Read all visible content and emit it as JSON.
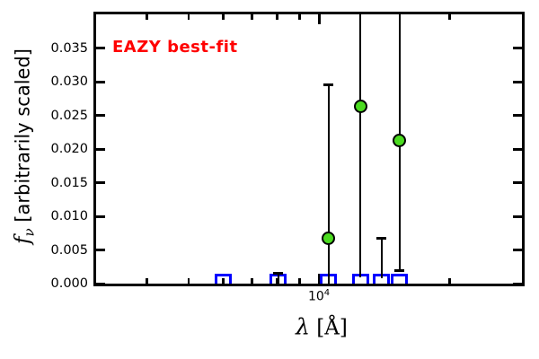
{
  "chart_data": {
    "type": "scatter",
    "annotation": "EAZY best-fit",
    "annotation_color": "#ff0000",
    "xlabel": {
      "symbol": "λ",
      "unit": "[Å]"
    },
    "ylabel": {
      "symbol": "f",
      "subscript": "ν",
      "rest": " [arbitrarily scaled]"
    },
    "x_scale": "log",
    "xlim": [
      3060,
      29400
    ],
    "ylim": [
      0,
      0.04
    ],
    "grid": false,
    "legend": "none",
    "ytick_values": [
      0.0,
      0.005,
      0.01,
      0.015,
      0.02,
      0.025,
      0.03,
      0.035
    ],
    "ytick_labels": [
      "0.000",
      "0.005",
      "0.010",
      "0.015",
      "0.020",
      "0.025",
      "0.030",
      "0.035"
    ],
    "xtick_major": {
      "value": 10000,
      "label_mantissa": "10",
      "label_exponent": "4"
    },
    "xtick_minor_values": [
      4000,
      5000,
      6000,
      7000,
      8000,
      9000,
      20000
    ],
    "series": [
      {
        "name": "observed-photometry",
        "marker": "circle",
        "marker_color": "#4bdb20",
        "errorbar_color": "#000000",
        "points": [
          {
            "lam": 8050,
            "flux": 0.0002,
            "bar_top": 0.0015,
            "bar_bottom": 0.0,
            "cap_top": true,
            "cap_bottom": false,
            "marker_visible": false
          },
          {
            "lam": 10520,
            "flux": 0.0068,
            "bar_top": 0.0296,
            "bar_bottom": 0.0,
            "cap_top": true,
            "cap_bottom": false,
            "marker_visible": true
          },
          {
            "lam": 12480,
            "flux": 0.0263,
            "bar_top": null,
            "bar_bottom": 0.0009,
            "cap_top": false,
            "cap_bottom": false,
            "marker_visible": true
          },
          {
            "lam": 13950,
            "flux": 0.0002,
            "bar_top": 0.0068,
            "bar_bottom": 0.0008,
            "cap_top": true,
            "cap_bottom": false,
            "marker_visible": false
          },
          {
            "lam": 15350,
            "flux": 0.0213,
            "bar_top": null,
            "bar_bottom": 0.002,
            "cap_top": false,
            "cap_bottom": true,
            "marker_visible": true
          }
        ]
      },
      {
        "name": "model-photometry",
        "marker": "open-square",
        "marker_color": "#0000ff",
        "points": [
          {
            "lam": 6000,
            "flux": 0.0002
          },
          {
            "lam": 8050,
            "flux": 0.0002
          },
          {
            "lam": 10520,
            "flux": 0.0002
          },
          {
            "lam": 12480,
            "flux": 0.0002
          },
          {
            "lam": 13950,
            "flux": 0.0002
          },
          {
            "lam": 15350,
            "flux": 0.0002
          }
        ]
      }
    ]
  },
  "colors": {
    "axis": "#000000",
    "annotation": "#ff0000",
    "observed_marker": "#4bdb20",
    "model_marker": "#0000ff",
    "errorbar": "#000000"
  }
}
